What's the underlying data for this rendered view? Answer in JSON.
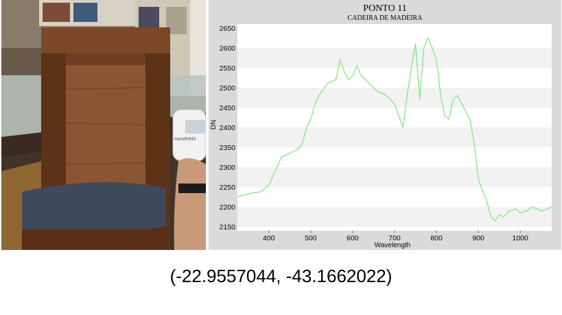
{
  "photo": {
    "description_icon": "photo-of-wooden-chair-with-handheld-spectrometer",
    "device_label": "HandHeld"
  },
  "coordinates_text": "(-22.9557044, -43.1662022)",
  "colors": {
    "series": "#7ee87e",
    "plot_bg": "#ffffff",
    "panel_bg": "#dadada",
    "band": "#f2f2f2"
  },
  "chart_data": {
    "type": "line",
    "title": "PONTO 11",
    "subtitle": "CADEIRA DE MADEIRA",
    "xlabel": "Wavelength",
    "ylabel": "DN",
    "xlim": [
      325,
      1075
    ],
    "ylim": [
      2140,
      2660
    ],
    "xticks": [
      400,
      500,
      600,
      700,
      800,
      900,
      1000
    ],
    "yticks": [
      2150,
      2200,
      2250,
      2300,
      2350,
      2400,
      2450,
      2500,
      2550,
      2600,
      2650
    ],
    "series": [
      {
        "name": "DN",
        "x": [
          325,
          340,
          360,
          380,
          400,
          415,
          430,
          450,
          470,
          480,
          490,
          500,
          510,
          520,
          540,
          560,
          570,
          580,
          590,
          600,
          610,
          620,
          640,
          650,
          660,
          680,
          700,
          710,
          720,
          730,
          740,
          750,
          760,
          770,
          780,
          790,
          800,
          810,
          820,
          830,
          840,
          850,
          860,
          870,
          880,
          890,
          900,
          910,
          920,
          930,
          940,
          950,
          960,
          975,
          990,
          1000,
          1015,
          1030,
          1050,
          1065,
          1075
        ],
        "y": [
          2225,
          2230,
          2235,
          2238,
          2255,
          2290,
          2325,
          2335,
          2345,
          2360,
          2400,
          2420,
          2460,
          2480,
          2510,
          2520,
          2570,
          2540,
          2520,
          2530,
          2555,
          2530,
          2510,
          2500,
          2490,
          2480,
          2460,
          2430,
          2400,
          2480,
          2550,
          2610,
          2470,
          2600,
          2625,
          2600,
          2570,
          2480,
          2430,
          2420,
          2470,
          2480,
          2460,
          2440,
          2420,
          2360,
          2270,
          2240,
          2215,
          2175,
          2165,
          2180,
          2175,
          2190,
          2195,
          2185,
          2190,
          2200,
          2190,
          2195,
          2200
        ]
      }
    ]
  }
}
